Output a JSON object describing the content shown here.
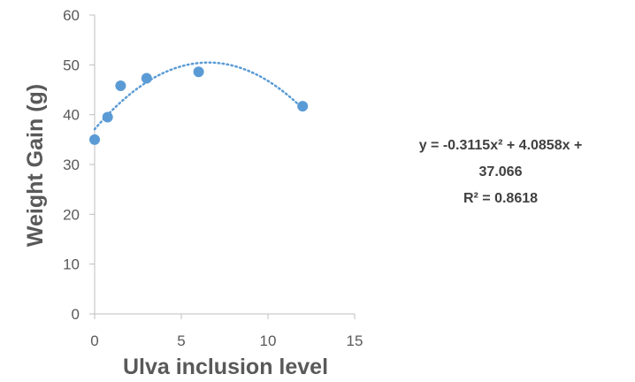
{
  "chart_data": {
    "type": "scatter",
    "title": "",
    "xlabel": "Ulva inclusion level",
    "ylabel": "Weight Gain (g)",
    "xlim": [
      0,
      15
    ],
    "ylim": [
      0,
      60
    ],
    "x_ticks": [
      "0",
      "5",
      "10",
      "15"
    ],
    "y_ticks": [
      "0",
      "10",
      "20",
      "30",
      "40",
      "50",
      "60"
    ],
    "grid": false,
    "series": [
      {
        "color": "#5B9BD5",
        "points": [
          {
            "x": 0,
            "y": 35.0
          },
          {
            "x": 0.75,
            "y": 39.5
          },
          {
            "x": 1.5,
            "y": 45.8
          },
          {
            "x": 3,
            "y": 47.3
          },
          {
            "x": 6,
            "y": 48.6
          },
          {
            "x": 12,
            "y": 41.7
          }
        ]
      }
    ],
    "trendline": {
      "type": "polynomial",
      "order": 2,
      "style": "dotted",
      "color": "#5B9BD5",
      "coefficients": {
        "a": -0.3115,
        "b": 4.0858,
        "c": 37.066
      },
      "equation_lines": [
        "y = -0.3115x² + 4.0858x +",
        "37.066",
        "R² = 0.8618"
      ]
    }
  }
}
